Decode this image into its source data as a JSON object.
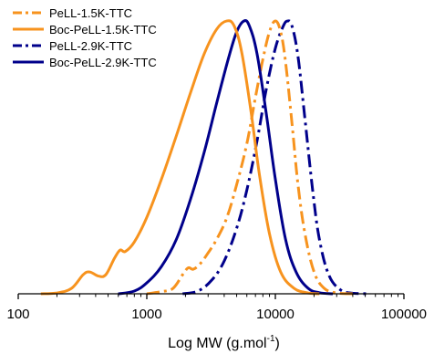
{
  "chart_data": {
    "type": "line",
    "xlabel": "Log MW (g.mol",
    "xlabel_sup": "-1",
    "xlabel_end": ")",
    "ylabel": "",
    "xscale": "log",
    "xlim": [
      100,
      100000
    ],
    "ylim": [
      0,
      1.05
    ],
    "x_ticks": [
      100,
      1000,
      10000,
      100000
    ],
    "x_tick_labels": [
      "100",
      "1000",
      "10000",
      "100000"
    ],
    "y_axis_visible": false,
    "grid": false,
    "legend_position": "top-left",
    "series": [
      {
        "name": "PeLL-1.5K-TTC",
        "color": "#F7931E",
        "dash": "dashdot",
        "points": [
          [
            1000,
            0
          ],
          [
            1300,
            0.008
          ],
          [
            1600,
            0.02
          ],
          [
            1900,
            0.07
          ],
          [
            2100,
            0.095
          ],
          [
            2300,
            0.09
          ],
          [
            2600,
            0.11
          ],
          [
            3000,
            0.15
          ],
          [
            3500,
            0.2
          ],
          [
            4200,
            0.28
          ],
          [
            5000,
            0.4
          ],
          [
            6000,
            0.55
          ],
          [
            7000,
            0.72
          ],
          [
            8000,
            0.86
          ],
          [
            9000,
            0.96
          ],
          [
            10000,
            1.0
          ],
          [
            11000,
            0.96
          ],
          [
            12000,
            0.85
          ],
          [
            13500,
            0.62
          ],
          [
            15000,
            0.4
          ],
          [
            17000,
            0.22
          ],
          [
            20000,
            0.08
          ],
          [
            24000,
            0.02
          ],
          [
            30000,
            0.003
          ],
          [
            40000,
            0
          ]
        ]
      },
      {
        "name": "Boc-PeLL-1.5K-TTC",
        "color": "#F7931E",
        "dash": "solid",
        "points": [
          [
            150,
            0
          ],
          [
            200,
            0.003
          ],
          [
            260,
            0.02
          ],
          [
            320,
            0.07
          ],
          [
            360,
            0.08
          ],
          [
            420,
            0.065
          ],
          [
            480,
            0.07
          ],
          [
            560,
            0.13
          ],
          [
            620,
            0.16
          ],
          [
            680,
            0.155
          ],
          [
            800,
            0.19
          ],
          [
            1000,
            0.28
          ],
          [
            1300,
            0.42
          ],
          [
            1700,
            0.58
          ],
          [
            2200,
            0.74
          ],
          [
            2800,
            0.88
          ],
          [
            3500,
            0.97
          ],
          [
            4200,
            1.0
          ],
          [
            4800,
            0.98
          ],
          [
            5500,
            0.88
          ],
          [
            6500,
            0.66
          ],
          [
            7500,
            0.44
          ],
          [
            9000,
            0.22
          ],
          [
            11000,
            0.08
          ],
          [
            14000,
            0.02
          ],
          [
            18000,
            0.003
          ],
          [
            22000,
            0
          ]
        ]
      },
      {
        "name": "PeLL-2.9K-TTC",
        "color": "#00008B",
        "dash": "dashdot",
        "points": [
          [
            1900,
            0
          ],
          [
            2500,
            0.01
          ],
          [
            3200,
            0.05
          ],
          [
            4000,
            0.12
          ],
          [
            5000,
            0.24
          ],
          [
            6000,
            0.38
          ],
          [
            7200,
            0.56
          ],
          [
            8500,
            0.75
          ],
          [
            10000,
            0.9
          ],
          [
            11500,
            0.98
          ],
          [
            12500,
            1.0
          ],
          [
            13500,
            0.98
          ],
          [
            15000,
            0.87
          ],
          [
            17000,
            0.64
          ],
          [
            19500,
            0.38
          ],
          [
            22000,
            0.2
          ],
          [
            26000,
            0.07
          ],
          [
            32000,
            0.015
          ],
          [
            40000,
            0.002
          ],
          [
            55000,
            0
          ]
        ]
      },
      {
        "name": "Boc-PeLL-2.9K-TTC",
        "color": "#00008B",
        "dash": "solid",
        "points": [
          [
            600,
            0
          ],
          [
            800,
            0.01
          ],
          [
            1000,
            0.04
          ],
          [
            1300,
            0.1
          ],
          [
            1700,
            0.2
          ],
          [
            2200,
            0.35
          ],
          [
            2800,
            0.52
          ],
          [
            3500,
            0.7
          ],
          [
            4300,
            0.86
          ],
          [
            5000,
            0.96
          ],
          [
            5700,
            1.0
          ],
          [
            6300,
            0.98
          ],
          [
            7200,
            0.88
          ],
          [
            8500,
            0.66
          ],
          [
            10000,
            0.42
          ],
          [
            12000,
            0.2
          ],
          [
            14500,
            0.08
          ],
          [
            18000,
            0.02
          ],
          [
            22000,
            0.004
          ],
          [
            28000,
            0
          ]
        ]
      }
    ]
  }
}
